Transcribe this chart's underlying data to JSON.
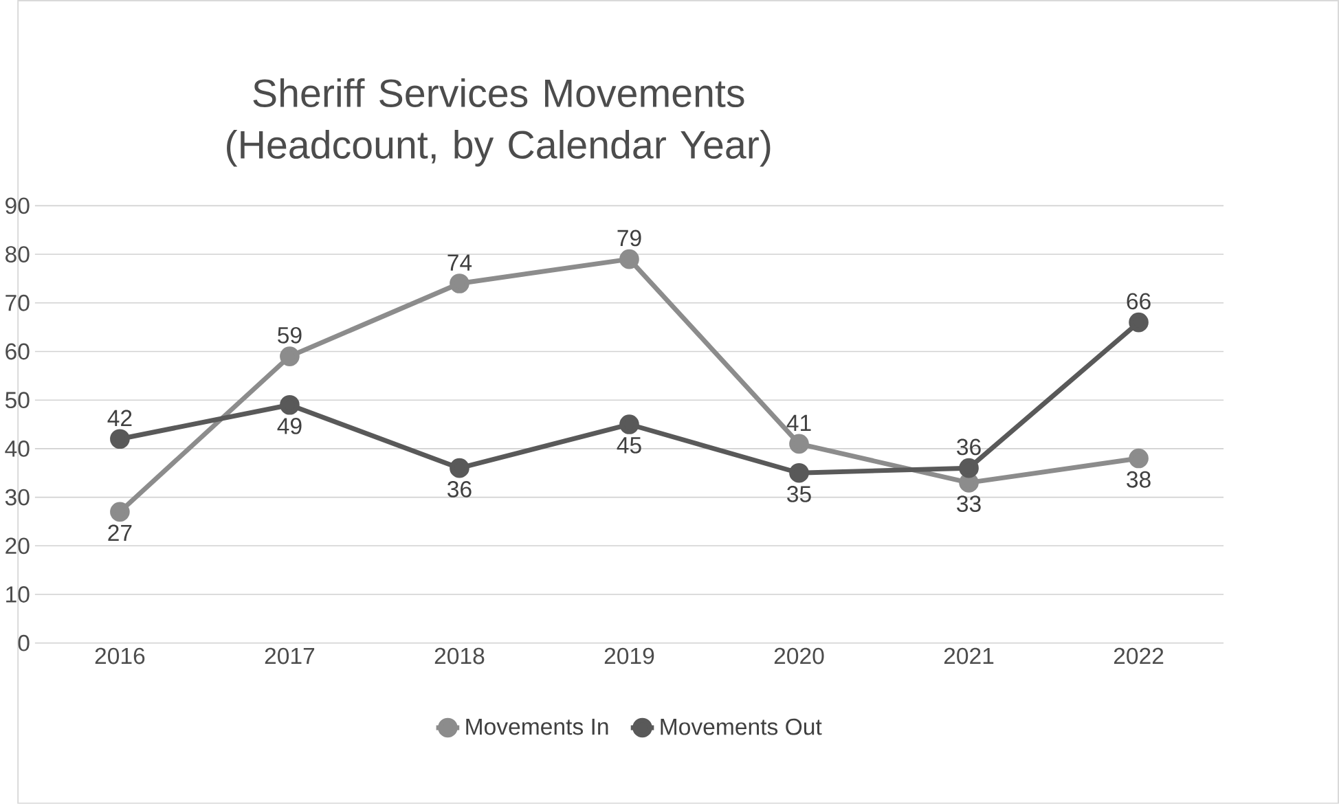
{
  "chart_data": {
    "type": "line",
    "title": "Sheriff Services Movements (Headcount, by Calendar Year)",
    "categories": [
      "2016",
      "2017",
      "2018",
      "2019",
      "2020",
      "2021",
      "2022"
    ],
    "series": [
      {
        "name": "Movements In",
        "color": "#8c8c8c",
        "values": [
          27,
          59,
          74,
          79,
          41,
          33,
          38
        ]
      },
      {
        "name": "Movements Out",
        "color": "#595959",
        "values": [
          42,
          49,
          36,
          45,
          35,
          36,
          66
        ]
      }
    ],
    "ylim": [
      0,
      90
    ],
    "yticks": [
      0,
      10,
      20,
      30,
      40,
      50,
      60,
      70,
      80,
      90
    ],
    "grid": "y",
    "legend": "bottom",
    "marker": "circle",
    "line_style": "solid",
    "data_labels": true
  }
}
